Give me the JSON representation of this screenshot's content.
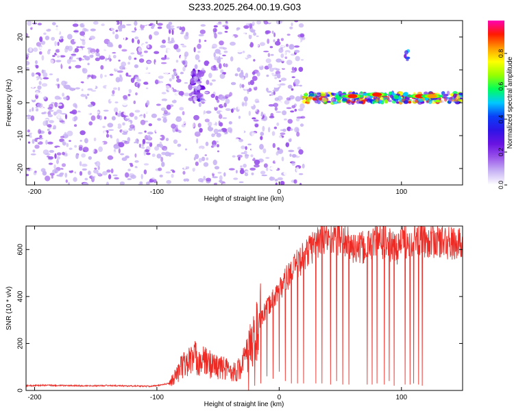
{
  "title": "S233.2025.264.00.19.G03",
  "colors": {
    "snr_line": "#ee2a24",
    "spec_cmap": [
      "#ffffff",
      "#c8b4f4",
      "#9a55ea",
      "#6a13e2",
      "#2e14e6",
      "#0a3ef7",
      "#00c8ff",
      "#00ff5a",
      "#96ff00",
      "#ffff00",
      "#ff9a00",
      "#ff1a00",
      "#ff00b4"
    ]
  },
  "chart_data": [
    {
      "type": "heatmap",
      "title": "S233.2025.264.00.19.G03",
      "xlabel": "Height of straight line (km)",
      "ylabel": "Frequency (Hz)",
      "xlim": [
        -207,
        150
      ],
      "ylim": [
        -25,
        25
      ],
      "x_ticks": [
        "-200",
        "-100",
        "0",
        "100"
      ],
      "x_tick_values": [
        -200,
        -100,
        0,
        100
      ],
      "y_ticks": [
        "-20",
        "-10",
        "0",
        "10",
        "20"
      ],
      "y_tick_values": [
        -20,
        -10,
        0,
        10,
        20
      ],
      "colorbar": {
        "label": "Normalized spectral amplitude",
        "range": [
          0,
          1
        ],
        "ticks": [
          "0.0",
          "0.2",
          "0.4",
          "0.6",
          "0.8"
        ],
        "tick_values": [
          0.0,
          0.2,
          0.4,
          0.6,
          0.8
        ]
      },
      "regions": [
        {
          "kind": "noise",
          "x": [
            -207,
            -75
          ],
          "y": [
            -25,
            25
          ],
          "amplitude": [
            0.0,
            0.2
          ]
        },
        {
          "kind": "gap",
          "x": [
            -73,
            -72
          ]
        },
        {
          "kind": "weak_signal",
          "x": [
            -73,
            -62
          ],
          "y": [
            0,
            10
          ],
          "amplitude": [
            0.1,
            0.3
          ]
        },
        {
          "kind": "noise",
          "x": [
            -71,
            20
          ],
          "y": [
            -25,
            25
          ],
          "amplitude": [
            0.0,
            0.2
          ]
        },
        {
          "kind": "signal_band",
          "x": [
            20,
            150
          ],
          "y": [
            0,
            3
          ],
          "amplitude": [
            0.1,
            0.95
          ]
        },
        {
          "kind": "signal_spike",
          "x": [
            102,
            106
          ],
          "y": [
            13,
            16
          ],
          "amplitude": [
            0.2,
            0.5
          ]
        }
      ],
      "band_peaks": [
        {
          "x": 60,
          "y": 2,
          "amplitude": 0.9
        },
        {
          "x": 80,
          "y": 2.5,
          "amplitude": 0.9
        },
        {
          "x": 115,
          "y": 2,
          "amplitude": 0.9
        },
        {
          "x": 125,
          "y": 2,
          "amplitude": 0.85
        }
      ]
    },
    {
      "type": "line",
      "xlabel": "Height of straight line (km)",
      "ylabel": "SNR (10 * v/v)",
      "xlim": [
        -207,
        150
      ],
      "ylim": [
        0,
        700
      ],
      "x_ticks": [
        "-200",
        "-100",
        "0",
        "100"
      ],
      "x_tick_values": [
        -200,
        -100,
        0,
        100
      ],
      "y_ticks": [
        "0",
        "200",
        "400",
        "600"
      ],
      "y_tick_values": [
        0,
        200,
        400,
        600
      ],
      "series": [
        {
          "x": [
            -207,
            -195,
            -180,
            -160,
            -140,
            -120,
            -105,
            -100,
            -95,
            -90,
            -85,
            -80,
            -75,
            -70,
            -65,
            -60,
            -55,
            -50,
            -45,
            -40,
            -35,
            -30,
            -25,
            -20,
            -15,
            -10,
            -5,
            0,
            5,
            10,
            15,
            20,
            25,
            30,
            35,
            40,
            45,
            50,
            55,
            60,
            65,
            70,
            75,
            80,
            85,
            90,
            95,
            100,
            105,
            110,
            115,
            120,
            125,
            130,
            135,
            140,
            150
          ],
          "y": [
            20,
            22,
            21,
            20,
            21,
            19,
            18,
            20,
            25,
            30,
            60,
            100,
            120,
            140,
            130,
            120,
            110,
            100,
            95,
            85,
            80,
            110,
            170,
            230,
            300,
            350,
            390,
            430,
            470,
            500,
            540,
            570,
            600,
            630,
            645,
            650,
            655,
            650,
            630,
            610,
            600,
            610,
            620,
            640,
            635,
            620,
            600,
            630,
            640,
            645,
            650,
            640,
            635,
            640,
            630,
            625,
            620
          ],
          "dropouts": [
            {
              "x": -25,
              "to": 0
            },
            {
              "x": -20,
              "to": 20
            },
            {
              "x": -15,
              "to": 30
            },
            {
              "x": -10,
              "to": 60
            },
            {
              "x": -5,
              "to": 50
            },
            {
              "x": 0,
              "to": 80
            },
            {
              "x": 5,
              "to": 40
            },
            {
              "x": 10,
              "to": 30
            },
            {
              "x": 15,
              "to": 30
            },
            {
              "x": 20,
              "to": 30
            },
            {
              "x": 30,
              "to": 30
            },
            {
              "x": 35,
              "to": 30
            },
            {
              "x": 42,
              "to": 25
            },
            {
              "x": 47,
              "to": 40
            },
            {
              "x": 52,
              "to": 25
            },
            {
              "x": 57,
              "to": 25
            },
            {
              "x": 72,
              "to": 25
            },
            {
              "x": 76,
              "to": 25
            },
            {
              "x": 80,
              "to": 30
            },
            {
              "x": 86,
              "to": 25
            },
            {
              "x": 90,
              "to": 40
            },
            {
              "x": 94,
              "to": 20
            },
            {
              "x": 103,
              "to": 25
            },
            {
              "x": 107,
              "to": 25
            },
            {
              "x": 110,
              "to": 30
            },
            {
              "x": 114,
              "to": 25
            },
            {
              "x": 117,
              "to": 20
            }
          ]
        }
      ]
    }
  ]
}
